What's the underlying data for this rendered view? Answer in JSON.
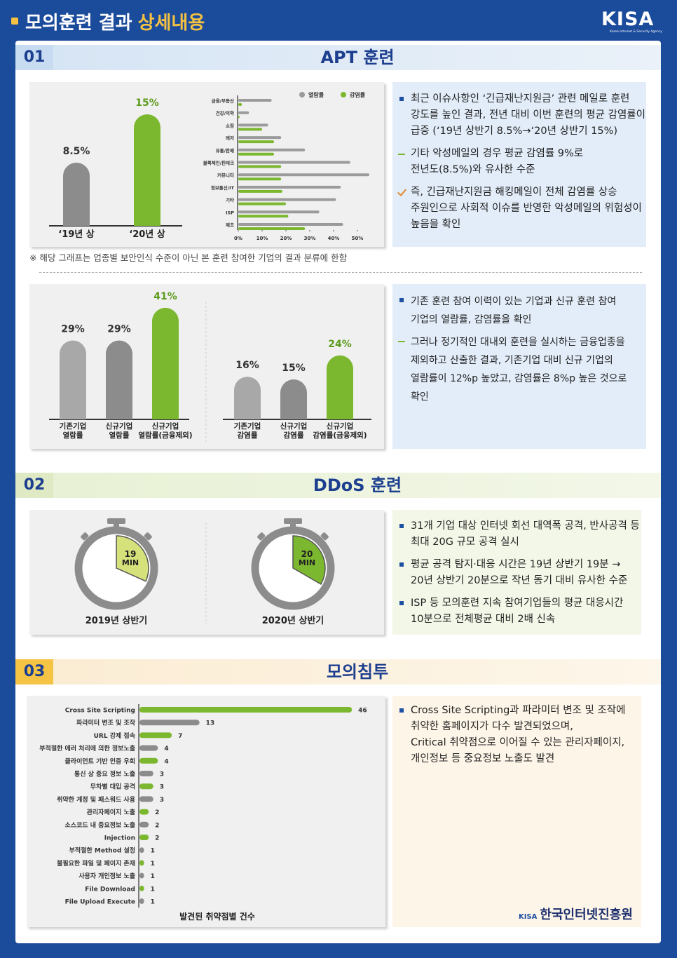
{
  "header": {
    "title": "모의훈련 결과",
    "title_highlight": "상세내용",
    "logo": "KISA",
    "logo_sub": "Korea Internet & Security Agency"
  },
  "sections": [
    {
      "number": "01",
      "title": "APT 훈련"
    },
    {
      "number": "02",
      "title": "DDoS 훈련"
    },
    {
      "number": "03",
      "title": "모의침투"
    }
  ],
  "notes": {
    "apt_1": [
      [
        "최근 이슈사항인 ‘긴급재난지원금’ 관련 메일로 훈련",
        "강도를 높인 결과, 전년 대비 이번 훈련의 평균 감염률이",
        "급증 (‘19년 상반기 8.5%→‘20년 상반기 15%)"
      ],
      [
        "기타 악성메일의 경우 평균 감염률 9%로",
        "전년도(8.5%)와 유사한 수준"
      ],
      [
        "즉, 긴급재난지원금 해킹메일이 전체 감염률 상승",
        "주원인으로 사회적 이슈를 반영한 악성메일의 위험성이",
        "높음을 확인"
      ]
    ],
    "apt_2": [
      [
        "기존 훈련 참여 이력이 있는 기업과 신규 훈련 참여",
        "기업의 열람률, 감염률을 확인"
      ],
      [
        "그러나 정기적인 대내외 훈련을 실시하는 금융업종을",
        "제외하고 산출한 결과, 기존기업 대비 신규 기업의",
        "열람률이 12%p 높았고, 감염률은 8%p 높은 것으로",
        "확인"
      ]
    ],
    "ddos": [
      [
        "31개 기업 대상 인터넷 회선 대역폭 공격, 반사공격 등",
        "최대 20G 규모 공격 실시"
      ],
      [
        "평균 공격 탐지·대응 시간은 19년 상반기 19분 →",
        "20년 상반기 20분으로 작년 동기 대비 유사한 수준"
      ],
      [
        "ISP 등 모의훈련 지속 참여기업들의  평균 대응시간",
        "10분으로 전체평균 대비 2배 신속"
      ]
    ],
    "pentest": [
      [
        "Cross Site Scripting과 파라미터 변조 및 조작에",
        "취약한 홈페이지가 다수 발견되었으며,",
        "Critical 취약점으로 이어질 수 있는 관리자페이지,",
        "개인정보 등 중요정보 노출도 발견"
      ]
    ],
    "footnote": "※ 해당 그래프는 업종별 보안인식 수준이 아닌 본 훈련 참여한 기업의 결과 분류에 한함"
  },
  "chart_data": [
    {
      "type": "bar",
      "categories": [
        "‘19년 상",
        "‘20년 상"
      ],
      "values": [
        8.5,
        15
      ],
      "value_labels": [
        "8.5%",
        "15%"
      ],
      "colors": [
        "#8c8c8c",
        "#7cb82f"
      ]
    },
    {
      "type": "hbar",
      "categories": [
        "금융/부동산",
        "건강/의학",
        "쇼핑",
        "레저",
        "유통/판매",
        "블록체인/핀테크",
        "커뮤니티",
        "정보통신/IT",
        "기타",
        "ISP",
        "제조"
      ],
      "series": [
        {
          "name": "열람률",
          "color": "#9b9b9b",
          "values": [
            14,
            4.5,
            12.5,
            18,
            28,
            47,
            55,
            43,
            41,
            34,
            44
          ]
        },
        {
          "name": "감염률",
          "color": "#7cb82f",
          "values": [
            1.5,
            0.5,
            10,
            15,
            15,
            18,
            18,
            18.5,
            20,
            21,
            28
          ]
        }
      ],
      "xlim": [
        0,
        55
      ],
      "xticks": [
        {
          "value": 0,
          "label": "0%"
        },
        {
          "value": 10,
          "label": "10%"
        },
        {
          "value": 20,
          "label": "20%"
        },
        {
          "value": 30,
          "label": "30%"
        },
        {
          "value": 40,
          "label": "40%"
        },
        {
          "value": 50,
          "label": "50%"
        }
      ],
      "legend": "top-right"
    },
    {
      "type": "bar",
      "categories": [
        [
          "기존기업",
          "열람률"
        ],
        [
          "신규기업",
          "열람률"
        ],
        [
          "신규기업",
          "열람률(금융제외)"
        ]
      ],
      "values": [
        29,
        29,
        41
      ],
      "value_labels": [
        "29%",
        "29%",
        "41%"
      ],
      "colors": [
        "#a8a8a8",
        "#8c8c8c",
        "#7cb82f"
      ]
    },
    {
      "type": "bar",
      "categories": [
        [
          "기존기업",
          "감염률"
        ],
        [
          "신규기업",
          "감염률"
        ],
        [
          "신규기업",
          "감염률(금융제외)"
        ]
      ],
      "values": [
        16,
        15,
        24
      ],
      "value_labels": [
        "16%",
        "15%",
        "24%"
      ],
      "colors": [
        "#a8a8a8",
        "#8c8c8c",
        "#7cb82f"
      ]
    },
    {
      "type": "clock",
      "value": 19,
      "unit": "MIN",
      "caption": "2019년 상반기",
      "color": "#d5e27b",
      "ylim": [
        0,
        60
      ]
    },
    {
      "type": "clock",
      "value": 20,
      "unit": "MIN",
      "caption": "2020년 상반기",
      "color": "#7cb82f",
      "ylim": [
        0,
        60
      ]
    },
    {
      "type": "hbar",
      "categories": [
        "Cross Site Scripting",
        "파라미터 변조 및 조작",
        "URL 강제 접속",
        "부적절한 에러 처리에 의한 정보노출",
        "클라이언트 기반 인증 우회",
        "통신 상 중요 정보 노출",
        "무차별 대입 공격",
        "취약한 계정 및 패스워드 사용",
        "관리자페이지 노출",
        "소스코드 내 중요정보 노출",
        "Injection",
        "부적절한 Method 설정",
        "불필요한 파일 및 페이지 존재",
        "사용자 개인정보 노출",
        "File Download",
        "File Upload Execute"
      ],
      "series": [
        {
          "values": [
            46,
            13,
            7,
            4,
            4,
            3,
            3,
            3,
            2,
            2,
            2,
            1,
            1,
            1,
            1,
            1
          ]
        }
      ],
      "colors": [
        "#7cb82f",
        "#8c8c8c",
        "#7cb82f",
        "#8c8c8c",
        "#7cb82f",
        "#8c8c8c",
        "#7cb82f",
        "#8c8c8c",
        "#7cb82f",
        "#8c8c8c",
        "#7cb82f",
        "#8c8c8c",
        "#7cb82f",
        "#8c8c8c",
        "#7cb82f",
        "#8c8c8c"
      ],
      "xlabel": "발견된 취약점별 건수"
    }
  ],
  "footer": {
    "logo": "KISA",
    "org": "한국인터넷진흥원"
  }
}
